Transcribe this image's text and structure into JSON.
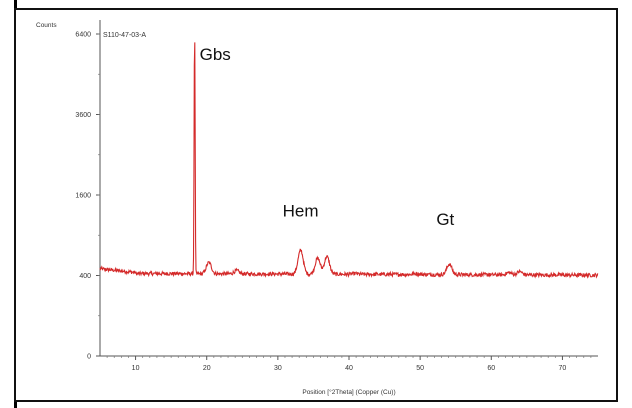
{
  "chart_data": {
    "type": "line",
    "ylabel": "Counts",
    "xlabel": "Position [°2Theta] (Copper (Cu))",
    "sample_id": "S110-47-03-A",
    "x_ticks": [
      10,
      20,
      30,
      40,
      50,
      60,
      70
    ],
    "y_ticks": [
      0,
      400,
      1600,
      3600,
      6400
    ],
    "y_tick_labels": [
      "0",
      "400",
      "1600",
      "3600",
      "6400"
    ],
    "xlim": [
      5,
      75
    ],
    "y_scale": "sqrt",
    "grid": false,
    "series_color": "#d42a2a",
    "annotations": [
      {
        "text": "Gbs",
        "x": 18.3,
        "y": 6400
      },
      {
        "text": "Hem",
        "x": 33.2,
        "y": 1200
      },
      {
        "text": "Gt",
        "x": 53.4,
        "y": 1060
      }
    ],
    "peaks": [
      {
        "x": 18.3,
        "y": 6400
      },
      {
        "x": 20.3,
        "y": 540
      },
      {
        "x": 24.2,
        "y": 450
      },
      {
        "x": 33.2,
        "y": 690
      },
      {
        "x": 35.6,
        "y": 590
      },
      {
        "x": 36.9,
        "y": 610
      },
      {
        "x": 40.9,
        "y": 420
      },
      {
        "x": 49.5,
        "y": 420
      },
      {
        "x": 54.1,
        "y": 520
      },
      {
        "x": 62.5,
        "y": 430
      },
      {
        "x": 64.0,
        "y": 440
      }
    ]
  }
}
